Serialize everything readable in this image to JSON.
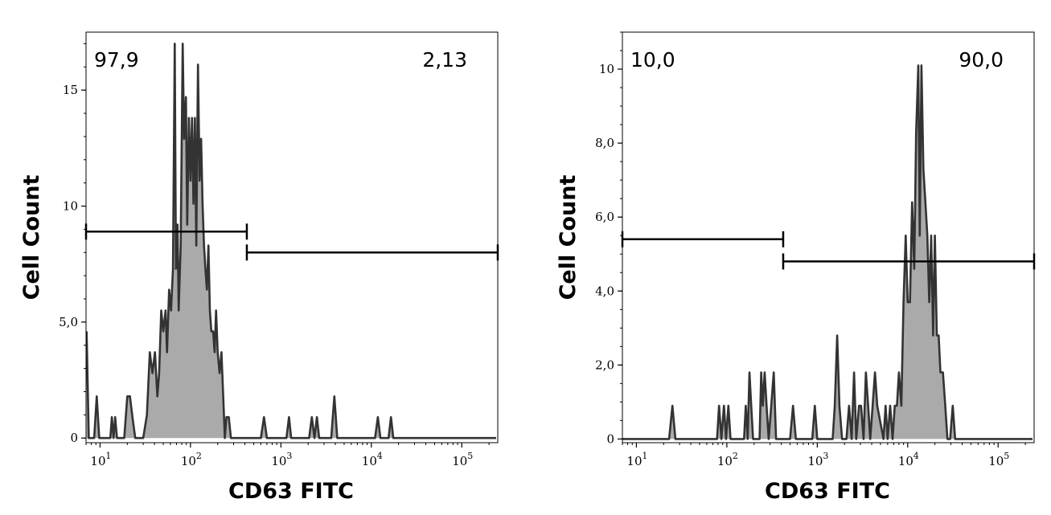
{
  "chart_data": [
    {
      "type": "area",
      "xlabel": "CD63 FITC",
      "ylabel": "Cell Count",
      "xscale": "log",
      "xlim": [
        7,
        250000
      ],
      "ylim": [
        -0.2,
        17.5
      ],
      "x_ticks": [
        {
          "value": 10,
          "base": "10",
          "exp": "1"
        },
        {
          "value": 100,
          "base": "10",
          "exp": "2"
        },
        {
          "value": 1000,
          "base": "10",
          "exp": "3"
        },
        {
          "value": 10000,
          "base": "10",
          "exp": "4"
        },
        {
          "value": 100000,
          "base": "10",
          "exp": "5"
        }
      ],
      "y_ticks": [
        {
          "value": 0,
          "label": "0"
        },
        {
          "value": 5,
          "label": "5,0"
        },
        {
          "value": 10,
          "label": "10"
        },
        {
          "value": 15,
          "label": "15"
        }
      ],
      "gates": [
        {
          "label": "97,9",
          "x_start": 7,
          "x_end": 420,
          "y": 8.9,
          "label_position": "top-left"
        },
        {
          "label": "2,13",
          "x_start": 420,
          "x_end": 250000,
          "y": 8.0,
          "label_position": "top-right"
        }
      ],
      "series": [
        {
          "points": [
            [
              7.1,
              4.6
            ],
            [
              7.5,
              0
            ],
            [
              8.6,
              0
            ],
            [
              9.2,
              1.8
            ],
            [
              9.8,
              0
            ],
            [
              13,
              0
            ],
            [
              13.5,
              0.9
            ],
            [
              14.1,
              0
            ],
            [
              14.7,
              0.9
            ],
            [
              15.4,
              0
            ],
            [
              18.5,
              0
            ],
            [
              20,
              1.8
            ],
            [
              21.4,
              1.8
            ],
            [
              22.8,
              0.9
            ],
            [
              24.5,
              0
            ],
            [
              30,
              0
            ],
            [
              33,
              1
            ],
            [
              35.5,
              3.7
            ],
            [
              38,
              2.8
            ],
            [
              40.5,
              3.7
            ],
            [
              43,
              1.8
            ],
            [
              45,
              2.8
            ],
            [
              47.5,
              5.5
            ],
            [
              50,
              4.6
            ],
            [
              53,
              5.5
            ],
            [
              55,
              3.7
            ],
            [
              58,
              6.4
            ],
            [
              61,
              5.5
            ],
            [
              64,
              7.3
            ],
            [
              67,
              17
            ],
            [
              69,
              7.3
            ],
            [
              72,
              9.2
            ],
            [
              74,
              5.5
            ],
            [
              78,
              8.3
            ],
            [
              82,
              17
            ],
            [
              85,
              12.9
            ],
            [
              89,
              14.7
            ],
            [
              92,
              9.2
            ],
            [
              96,
              13.8
            ],
            [
              100,
              11.1
            ],
            [
              104,
              13.8
            ],
            [
              108,
              10.1
            ],
            [
              112,
              13.8
            ],
            [
              116,
              8.3
            ],
            [
              121,
              16.1
            ],
            [
              126,
              11.1
            ],
            [
              131,
              12.9
            ],
            [
              136,
              10.1
            ],
            [
              141,
              8.3
            ],
            [
              146,
              7.3
            ],
            [
              152,
              6.4
            ],
            [
              158,
              8.3
            ],
            [
              164,
              5.5
            ],
            [
              170,
              4.6
            ],
            [
              178,
              4.6
            ],
            [
              185,
              3.7
            ],
            [
              192,
              5.5
            ],
            [
              200,
              3.7
            ],
            [
              210,
              2.8
            ],
            [
              220,
              3.7
            ],
            [
              230,
              1.8
            ],
            [
              240,
              0
            ],
            [
              250,
              0.9
            ],
            [
              265,
              0.9
            ],
            [
              280,
              0
            ],
            [
              600,
              0
            ],
            [
              650,
              0.9
            ],
            [
              700,
              0
            ],
            [
              1150,
              0
            ],
            [
              1230,
              0.9
            ],
            [
              1300,
              0
            ],
            [
              2050,
              0
            ],
            [
              2200,
              0.9
            ],
            [
              2350,
              0
            ],
            [
              2500,
              0.9
            ],
            [
              2650,
              0
            ],
            [
              3600,
              0
            ],
            [
              3900,
              1.8
            ],
            [
              4200,
              0
            ],
            [
              11000,
              0
            ],
            [
              11800,
              0.9
            ],
            [
              12600,
              0
            ],
            [
              15500,
              0
            ],
            [
              16500,
              0.9
            ],
            [
              17500,
              0
            ],
            [
              240000,
              0
            ]
          ]
        }
      ]
    },
    {
      "type": "area",
      "xlabel": "CD63 FITC",
      "ylabel": "Cell Count",
      "xscale": "log",
      "xlim": [
        7,
        250000
      ],
      "ylim": [
        -0.1,
        11
      ],
      "x_ticks": [
        {
          "value": 10,
          "base": "10",
          "exp": "1"
        },
        {
          "value": 100,
          "base": "10",
          "exp": "2"
        },
        {
          "value": 1000,
          "base": "10",
          "exp": "3"
        },
        {
          "value": 10000,
          "base": "10",
          "exp": "4"
        },
        {
          "value": 100000,
          "base": "10",
          "exp": "5"
        }
      ],
      "y_ticks": [
        {
          "value": 0,
          "label": "0"
        },
        {
          "value": 2,
          "label": "2,0"
        },
        {
          "value": 4,
          "label": "4,0"
        },
        {
          "value": 6,
          "label": "6,0"
        },
        {
          "value": 8,
          "label": "8,0"
        },
        {
          "value": 10,
          "label": "10"
        }
      ],
      "gates": [
        {
          "label": "10,0",
          "x_start": 7,
          "x_end": 420,
          "y": 5.4,
          "label_position": "top-left"
        },
        {
          "label": "90,0",
          "x_start": 420,
          "x_end": 250000,
          "y": 4.8,
          "label_position": "top-right"
        }
      ],
      "series": [
        {
          "points": [
            [
              7,
              0
            ],
            [
              23,
              0
            ],
            [
              25,
              0.9
            ],
            [
              27,
              0
            ],
            [
              78,
              0
            ],
            [
              82,
              0.9
            ],
            [
              87,
              0
            ],
            [
              93,
              0.9
            ],
            [
              98,
              0
            ],
            [
              104,
              0.9
            ],
            [
              110,
              0
            ],
            [
              155,
              0
            ],
            [
              162,
              0.9
            ],
            [
              170,
              0
            ],
            [
              178,
              1.8
            ],
            [
              186,
              0.9
            ],
            [
              195,
              0
            ],
            [
              230,
              0
            ],
            [
              240,
              1.8
            ],
            [
              250,
              0.9
            ],
            [
              262,
              1.8
            ],
            [
              275,
              0.9
            ],
            [
              290,
              0
            ],
            [
              310,
              0.9
            ],
            [
              330,
              1.8
            ],
            [
              350,
              0
            ],
            [
              500,
              0
            ],
            [
              540,
              0.9
            ],
            [
              580,
              0
            ],
            [
              880,
              0
            ],
            [
              940,
              0.9
            ],
            [
              1000,
              0
            ],
            [
              1480,
              0
            ],
            [
              1560,
              0.9
            ],
            [
              1660,
              2.8
            ],
            [
              1760,
              0.9
            ],
            [
              1880,
              0
            ],
            [
              2100,
              0
            ],
            [
              2250,
              0.9
            ],
            [
              2400,
              0
            ],
            [
              2550,
              1.8
            ],
            [
              2700,
              0
            ],
            [
              2900,
              0.9
            ],
            [
              3050,
              0.9
            ],
            [
              3250,
              0
            ],
            [
              3450,
              1.8
            ],
            [
              3650,
              0.9
            ],
            [
              3850,
              0
            ],
            [
              4100,
              0.9
            ],
            [
              4350,
              1.8
            ],
            [
              4600,
              0.9
            ],
            [
              5400,
              0
            ],
            [
              5700,
              0.9
            ],
            [
              6000,
              0
            ],
            [
              6400,
              0.9
            ],
            [
              6800,
              0
            ],
            [
              7200,
              0.9
            ],
            [
              7600,
              0.9
            ],
            [
              8000,
              1.8
            ],
            [
              8500,
              0.9
            ],
            [
              9000,
              3.7
            ],
            [
              9500,
              5.5
            ],
            [
              10000,
              3.7
            ],
            [
              10600,
              3.7
            ],
            [
              11200,
              6.4
            ],
            [
              11800,
              4.6
            ],
            [
              12400,
              8.3
            ],
            [
              13100,
              10.1
            ],
            [
              13600,
              5.5
            ],
            [
              14200,
              10.1
            ],
            [
              14900,
              7.3
            ],
            [
              15700,
              6.4
            ],
            [
              16500,
              5.5
            ],
            [
              17300,
              3.7
            ],
            [
              18200,
              5.5
            ],
            [
              19100,
              2.8
            ],
            [
              20000,
              5.5
            ],
            [
              21000,
              2.8
            ],
            [
              22000,
              2.8
            ],
            [
              23000,
              1.8
            ],
            [
              24500,
              1.8
            ],
            [
              26000,
              0.9
            ],
            [
              27500,
              0
            ],
            [
              29500,
              0
            ],
            [
              31500,
              0.9
            ],
            [
              33500,
              0
            ],
            [
              240000,
              0
            ]
          ]
        }
      ]
    }
  ]
}
